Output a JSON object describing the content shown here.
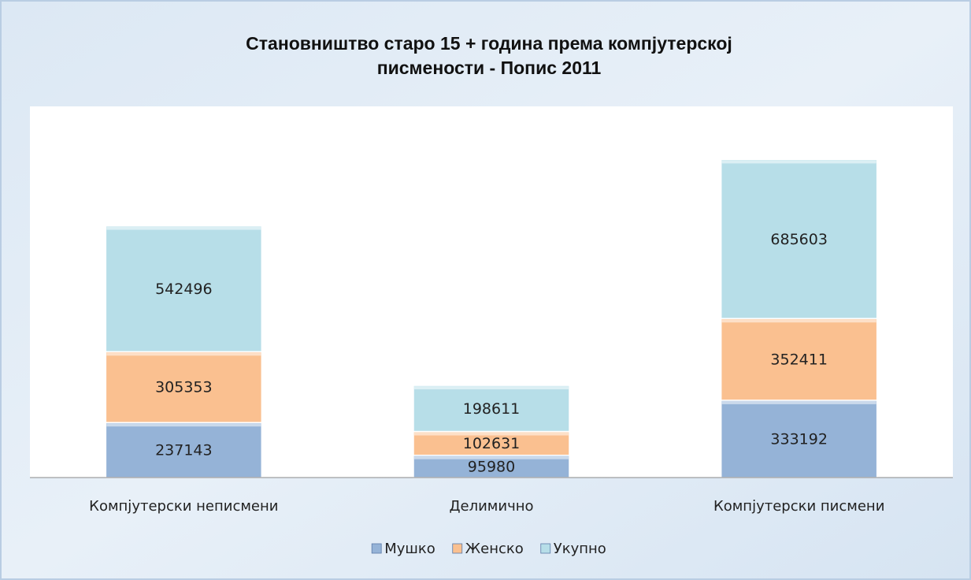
{
  "chart_data": {
    "type": "stacked_bar",
    "title": [
      "Становништво старо 15 + година према компјутерској",
      "писмености - Попис 2011"
    ],
    "categories": [
      "Компјутерски неписмени",
      "Делимично",
      "Компјутерски писмени"
    ],
    "series": [
      {
        "name": "Мушко",
        "color": "#95b3d7",
        "values": [
          237143,
          95980,
          333192
        ]
      },
      {
        "name": "Женско",
        "color": "#fac090",
        "values": [
          305353,
          102631,
          352411
        ]
      },
      {
        "name": "Укупно",
        "color": "#b7dee8",
        "values": [
          542496,
          198611,
          685603
        ]
      }
    ],
    "ylim": [
      0,
      1600000
    ],
    "legend": "bottom"
  }
}
